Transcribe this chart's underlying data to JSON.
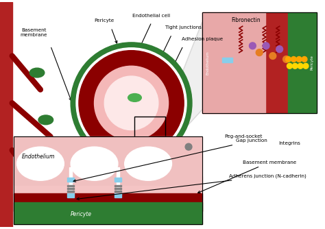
{
  "title": "",
  "bg_color": "#ffffff",
  "labels": {
    "basement_membrane": "Basement\nmembrane",
    "pericyte": "Pericyte",
    "endothelial_cell": "Endothelial cell",
    "tight_junctions": "Tight junctions",
    "adhesion_plaque": "Adhesion plaque",
    "fibronectin": "Fibronectin",
    "peg_and_socket": "Peg-and-socket",
    "integrins": "Integrins",
    "gap_junction": "Gap junction",
    "basement_membrane2": "Basement membrane",
    "adherens_junction": "Adherens junction (N-cadherin)",
    "endothelium": "Endothelium",
    "pericyte2": "Pericyte"
  },
  "colors": {
    "dark_red": "#8B0000",
    "medium_red": "#C0392B",
    "light_red": "#E8A0A0",
    "pink": "#F2C4C4",
    "green_dark": "#2E7D32",
    "green_medium": "#4CAF50",
    "green_light": "#81C784",
    "white": "#FFFFFF",
    "light_pink": "#FADADD",
    "blood_vessel_red": "#B22222",
    "gray": "#808080",
    "light_gray": "#D3D3D3",
    "black": "#000000",
    "blue_cyan": "#87CEEB",
    "purple": "#800080",
    "orange": "#FFA500",
    "yellow": "#FFD700",
    "dark_green": "#1B5E20"
  }
}
